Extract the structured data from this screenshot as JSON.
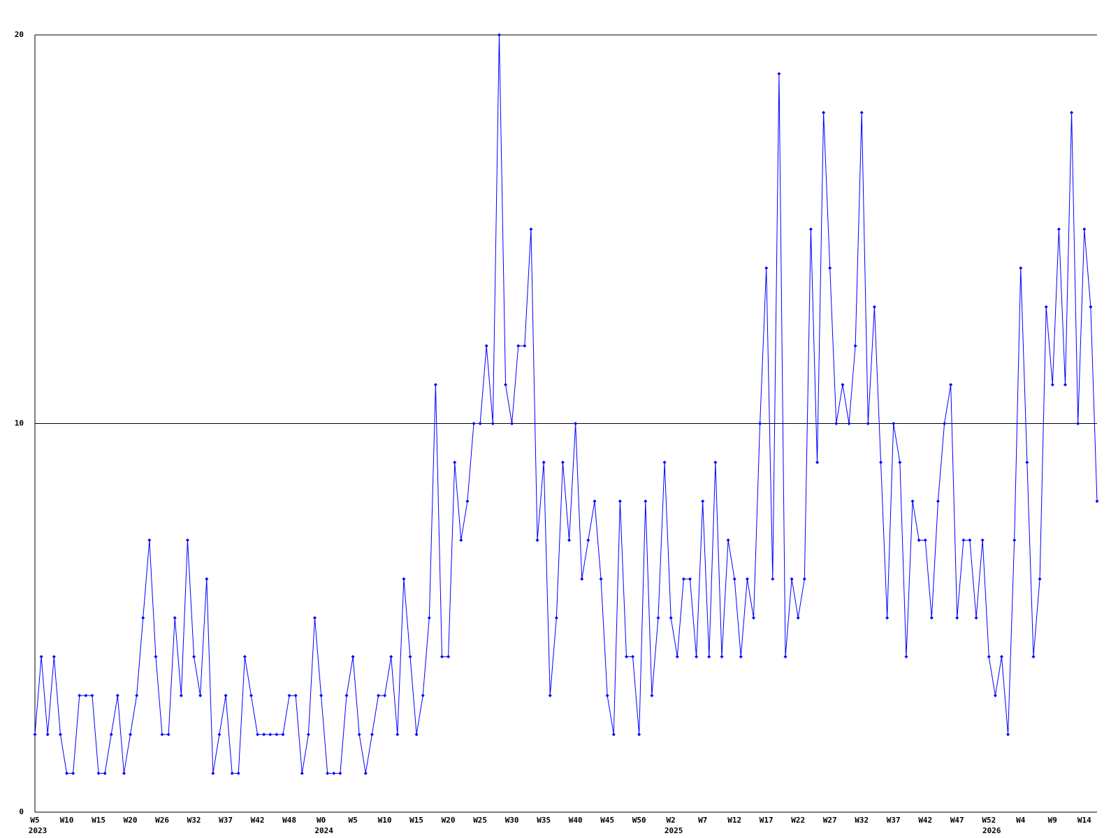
{
  "chart_data": {
    "type": "line",
    "categories": [
      "W5",
      null,
      null,
      null,
      null,
      "W10",
      null,
      null,
      null,
      null,
      "W15",
      null,
      null,
      null,
      null,
      "W20",
      null,
      null,
      null,
      null,
      "W26",
      null,
      null,
      null,
      null,
      "W32",
      null,
      null,
      null,
      null,
      "W37",
      null,
      null,
      null,
      null,
      "W42",
      null,
      null,
      null,
      null,
      "W48",
      null,
      null,
      null,
      null,
      "W0",
      null,
      null,
      null,
      null,
      "W5",
      null,
      null,
      null,
      null,
      "W10",
      null,
      null,
      null,
      null,
      "W15",
      null,
      null,
      null,
      null,
      "W20",
      null,
      null,
      null,
      null,
      "W25",
      null,
      null,
      null,
      null,
      "W30",
      null,
      null,
      null,
      null,
      "W35",
      null,
      null,
      null,
      null,
      "W40",
      null,
      null,
      null,
      null,
      "W45",
      null,
      null,
      null,
      null,
      "W50",
      null,
      null,
      null,
      null,
      "W2",
      null,
      null,
      null,
      null,
      "W7",
      null,
      null,
      null,
      null,
      "W12",
      null,
      null,
      null,
      null,
      "W17",
      null,
      null,
      null,
      null,
      "W22",
      null,
      null,
      null,
      null,
      "W27",
      null,
      null,
      null,
      null,
      "W32",
      null,
      null,
      null,
      null,
      "W37",
      null,
      null,
      null,
      null,
      "W42",
      null,
      null,
      null,
      null,
      "W47",
      null,
      null,
      null,
      null,
      "W52",
      null,
      null,
      null,
      null,
      "W4",
      null,
      null,
      null,
      null,
      "W9",
      null,
      null,
      null,
      null,
      "W14",
      null,
      null
    ],
    "years": [
      "2023",
      null,
      null,
      null,
      null,
      null,
      null,
      null,
      null,
      null,
      null,
      null,
      null,
      null,
      null,
      null,
      null,
      null,
      null,
      null,
      null,
      null,
      null,
      null,
      null,
      null,
      null,
      null,
      null,
      null,
      null,
      null,
      null,
      null,
      null,
      null,
      null,
      null,
      null,
      null,
      null,
      null,
      null,
      null,
      null,
      "2024",
      null,
      null,
      null,
      null,
      null,
      null,
      null,
      null,
      null,
      null,
      null,
      null,
      null,
      null,
      null,
      null,
      null,
      null,
      null,
      null,
      null,
      null,
      null,
      null,
      null,
      null,
      null,
      null,
      null,
      null,
      null,
      null,
      null,
      null,
      null,
      null,
      null,
      null,
      null,
      null,
      null,
      null,
      null,
      null,
      null,
      null,
      null,
      null,
      null,
      null,
      null,
      null,
      null,
      null,
      "2025",
      null,
      null,
      null,
      null,
      null,
      null,
      null,
      null,
      null,
      null,
      null,
      null,
      null,
      null,
      null,
      null,
      null,
      null,
      null,
      null,
      null,
      null,
      null,
      null,
      null,
      null,
      null,
      null,
      null,
      null,
      null,
      null,
      null,
      null,
      null,
      null,
      null,
      null,
      null,
      null,
      null,
      null,
      null,
      null,
      null,
      null,
      null,
      null,
      null,
      "2026",
      null,
      null,
      null,
      null,
      null,
      null,
      null,
      null,
      null,
      null,
      null,
      null,
      null,
      null,
      null,
      null,
      null
    ],
    "values": [
      2,
      4,
      2,
      4,
      2,
      1,
      1,
      3,
      3,
      3,
      1,
      1,
      2,
      3,
      1,
      2,
      3,
      5,
      7,
      4,
      2,
      2,
      5,
      3,
      7,
      4,
      3,
      6,
      1,
      2,
      3,
      1,
      1,
      4,
      3,
      2,
      2,
      2,
      2,
      2,
      3,
      3,
      1,
      2,
      5,
      3,
      1,
      1,
      1,
      3,
      4,
      2,
      1,
      2,
      3,
      3,
      4,
      2,
      6,
      4,
      2,
      3,
      5,
      11,
      4,
      4,
      9,
      7,
      8,
      10,
      10,
      12,
      10,
      20,
      11,
      10,
      12,
      12,
      15,
      7,
      9,
      3,
      5,
      9,
      7,
      10,
      6,
      7,
      8,
      6,
      3,
      2,
      8,
      4,
      4,
      2,
      8,
      3,
      5,
      9,
      5,
      4,
      6,
      6,
      4,
      8,
      4,
      9,
      4,
      7,
      6,
      4,
      6,
      5,
      10,
      14,
      6,
      19,
      4,
      6,
      5,
      6,
      15,
      9,
      18,
      14,
      10,
      11,
      10,
      12,
      18,
      10,
      13,
      9,
      5,
      10,
      9,
      4,
      8,
      7,
      7,
      5,
      8,
      10,
      11,
      5,
      7,
      7,
      5,
      7,
      4,
      3,
      4,
      2,
      7,
      14,
      9,
      4,
      6,
      13,
      11,
      15,
      11,
      18,
      10,
      15,
      13,
      8
    ],
    "color": "#0000ff",
    "ylim": [
      0,
      20
    ],
    "yticks": [
      0,
      10,
      20
    ],
    "grid": true
  }
}
